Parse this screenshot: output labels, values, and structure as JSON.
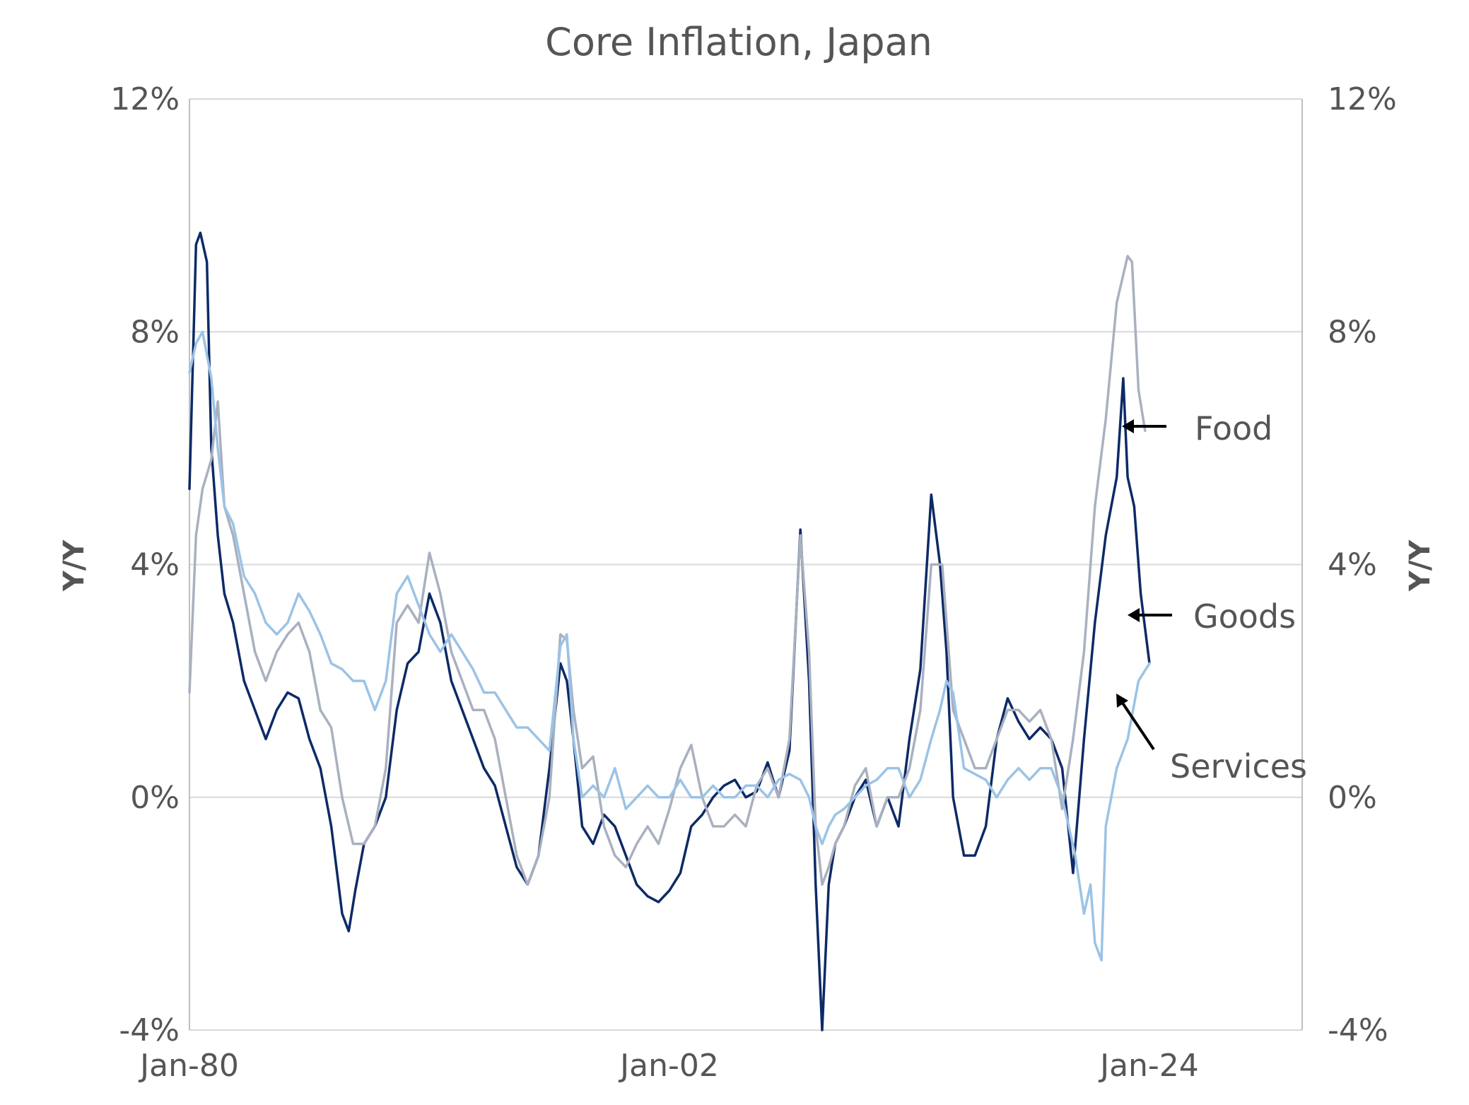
{
  "chart_data": {
    "type": "line",
    "title": "Core Inflation, Japan",
    "ylabel_left": "Y/Y",
    "ylabel_right": "Y/Y",
    "xlim": [
      1980,
      2031
    ],
    "ylim": [
      -4,
      12
    ],
    "yticks": [
      -4,
      0,
      4,
      8,
      12
    ],
    "ytick_labels": [
      "-4%",
      "0%",
      "4%",
      "8%",
      "12%"
    ],
    "xticks": [
      1980,
      2002,
      2024
    ],
    "xtick_labels": [
      "Jan-80",
      "Jan-02",
      "Jan-24"
    ],
    "grid": true,
    "series": [
      {
        "name": "Goods",
        "color": "#0d2a66",
        "x": [
          1980,
          1980.3,
          1980.5,
          1980.8,
          1981,
          1981.3,
          1981.6,
          1982,
          1982.5,
          1983,
          1983.5,
          1984,
          1984.5,
          1985,
          1985.5,
          1986,
          1986.5,
          1987,
          1987.3,
          1987.6,
          1988,
          1988.5,
          1989,
          1989.5,
          1990,
          1990.5,
          1991,
          1991.5,
          1992,
          1992.5,
          1993,
          1993.5,
          1994,
          1994.5,
          1995,
          1995.5,
          1996,
          1996.5,
          1997,
          1997.3,
          1997.6,
          1998,
          1998.5,
          1999,
          1999.5,
          2000,
          2000.5,
          2001,
          2001.5,
          2002,
          2002.5,
          2003,
          2003.5,
          2004,
          2004.5,
          2005,
          2005.5,
          2006,
          2006.5,
          2007,
          2007.5,
          2008,
          2008.4,
          2008.7,
          2009,
          2009.3,
          2009.6,
          2010,
          2010.5,
          2011,
          2011.5,
          2012,
          2012.5,
          2013,
          2013.5,
          2014,
          2014.4,
          2014.7,
          2015,
          2015.5,
          2016,
          2016.5,
          2017,
          2017.5,
          2018,
          2018.5,
          2019,
          2019.5,
          2020,
          2020.5,
          2021,
          2021.5,
          2022,
          2022.5,
          2022.8,
          2023,
          2023.3,
          2023.6,
          2024
        ],
        "y": [
          5.3,
          9.5,
          9.7,
          9.2,
          6.0,
          4.5,
          3.5,
          3.0,
          2.0,
          1.5,
          1.0,
          1.5,
          1.8,
          1.7,
          1.0,
          0.5,
          -0.5,
          -2.0,
          -2.3,
          -1.6,
          -0.8,
          -0.5,
          0.0,
          1.5,
          2.3,
          2.5,
          3.5,
          3.0,
          2.0,
          1.5,
          1.0,
          0.5,
          0.2,
          -0.5,
          -1.2,
          -1.5,
          -1.0,
          0.5,
          2.3,
          2.0,
          1.0,
          -0.5,
          -0.8,
          -0.3,
          -0.5,
          -1.0,
          -1.5,
          -1.7,
          -1.8,
          -1.6,
          -1.3,
          -0.5,
          -0.3,
          0.0,
          0.2,
          0.3,
          0.0,
          0.1,
          0.6,
          0.0,
          0.8,
          4.6,
          2.0,
          -1.5,
          -4.0,
          -1.5,
          -0.8,
          -0.5,
          0.0,
          0.3,
          -0.5,
          0.0,
          -0.5,
          1.0,
          2.2,
          5.2,
          4.0,
          2.5,
          0.0,
          -1.0,
          -1.0,
          -0.5,
          1.0,
          1.7,
          1.3,
          1.0,
          1.2,
          1.0,
          0.5,
          -1.3,
          1.0,
          3.0,
          4.5,
          5.5,
          7.2,
          5.5,
          5.0,
          3.5,
          2.3
        ]
      },
      {
        "name": "Food",
        "color": "#a9b0bf",
        "x": [
          1980,
          1980.3,
          1980.6,
          1981,
          1981.3,
          1981.6,
          1982,
          1982.5,
          1983,
          1983.5,
          1984,
          1984.5,
          1985,
          1985.5,
          1986,
          1986.5,
          1987,
          1987.5,
          1988,
          1988.5,
          1989,
          1989.5,
          1990,
          1990.5,
          1991,
          1991.5,
          1992,
          1992.5,
          1993,
          1993.5,
          1994,
          1994.5,
          1995,
          1995.5,
          1996,
          1996.5,
          1997,
          1997.3,
          1997.6,
          1998,
          1998.5,
          1999,
          1999.5,
          2000,
          2000.5,
          2001,
          2001.5,
          2002,
          2002.5,
          2003,
          2003.5,
          2004,
          2004.5,
          2005,
          2005.5,
          2006,
          2006.5,
          2007,
          2007.5,
          2008,
          2008.4,
          2008.7,
          2009,
          2009.3,
          2009.6,
          2010,
          2010.5,
          2011,
          2011.5,
          2012,
          2012.5,
          2013,
          2013.5,
          2014,
          2014.5,
          2015,
          2015.5,
          2016,
          2016.5,
          2017,
          2017.5,
          2018,
          2018.5,
          2019,
          2019.5,
          2020,
          2020.5,
          2021,
          2021.5,
          2022,
          2022.5,
          2023,
          2023.2,
          2023.5,
          2023.8
        ],
        "y": [
          1.8,
          4.5,
          5.3,
          5.8,
          6.8,
          5.0,
          4.5,
          3.5,
          2.5,
          2.0,
          2.5,
          2.8,
          3.0,
          2.5,
          1.5,
          1.2,
          0.0,
          -0.8,
          -0.8,
          -0.5,
          0.5,
          3.0,
          3.3,
          3.0,
          4.2,
          3.5,
          2.5,
          2.0,
          1.5,
          1.5,
          1.0,
          0.0,
          -1.0,
          -1.5,
          -1.0,
          0.0,
          2.8,
          2.7,
          1.5,
          0.5,
          0.7,
          -0.5,
          -1.0,
          -1.2,
          -0.8,
          -0.5,
          -0.8,
          -0.2,
          0.5,
          0.9,
          0.0,
          -0.5,
          -0.5,
          -0.3,
          -0.5,
          0.2,
          0.5,
          0.0,
          1.0,
          4.5,
          2.5,
          -0.5,
          -1.5,
          -1.2,
          -0.8,
          -0.5,
          0.2,
          0.5,
          -0.5,
          0.0,
          0.0,
          0.5,
          1.5,
          4.0,
          4.0,
          1.5,
          1.0,
          0.5,
          0.5,
          1.0,
          1.5,
          1.5,
          1.3,
          1.5,
          1.0,
          -0.2,
          1.0,
          2.5,
          5.0,
          6.5,
          8.5,
          9.3,
          9.2,
          7.0,
          6.3
        ]
      },
      {
        "name": "Services",
        "color": "#9bc3e6",
        "x": [
          1980,
          1980.3,
          1980.6,
          1981,
          1981.3,
          1981.6,
          1982,
          1982.5,
          1983,
          1983.5,
          1984,
          1984.5,
          1985,
          1985.5,
          1986,
          1986.5,
          1987,
          1987.5,
          1988,
          1988.5,
          1989,
          1989.5,
          1990,
          1990.5,
          1991,
          1991.5,
          1992,
          1992.5,
          1993,
          1993.5,
          1994,
          1994.5,
          1995,
          1995.5,
          1996,
          1996.5,
          1997,
          1997.3,
          1997.6,
          1998,
          1998.5,
          1999,
          1999.5,
          2000,
          2000.5,
          2001,
          2001.5,
          2002,
          2002.5,
          2003,
          2003.5,
          2004,
          2004.5,
          2005,
          2005.5,
          2006,
          2006.5,
          2007,
          2007.5,
          2008,
          2008.4,
          2008.7,
          2009,
          2009.3,
          2009.6,
          2010,
          2010.5,
          2011,
          2011.5,
          2012,
          2012.5,
          2013,
          2013.5,
          2014,
          2014.4,
          2014.7,
          2015,
          2015.5,
          2016,
          2016.5,
          2017,
          2017.5,
          2018,
          2018.5,
          2019,
          2019.5,
          2020,
          2020.3,
          2020.6,
          2021,
          2021.3,
          2021.5,
          2021.8,
          2022,
          2022.5,
          2023,
          2023.5,
          2024
        ],
        "y": [
          7.3,
          7.8,
          8.0,
          7.2,
          6.0,
          5.0,
          4.7,
          3.8,
          3.5,
          3.0,
          2.8,
          3.0,
          3.5,
          3.2,
          2.8,
          2.3,
          2.2,
          2.0,
          2.0,
          1.5,
          2.0,
          3.5,
          3.8,
          3.3,
          2.8,
          2.5,
          2.8,
          2.5,
          2.2,
          1.8,
          1.8,
          1.5,
          1.2,
          1.2,
          1.0,
          0.8,
          2.6,
          2.8,
          1.0,
          0.0,
          0.2,
          0.0,
          0.5,
          -0.2,
          0.0,
          0.2,
          0.0,
          0.0,
          0.3,
          0.0,
          0.0,
          0.2,
          0.0,
          0.0,
          0.2,
          0.2,
          0.0,
          0.3,
          0.4,
          0.3,
          0.0,
          -0.5,
          -0.8,
          -0.5,
          -0.3,
          -0.2,
          0.0,
          0.2,
          0.3,
          0.5,
          0.5,
          0.0,
          0.3,
          1.0,
          1.5,
          2.0,
          1.8,
          0.5,
          0.4,
          0.3,
          0.0,
          0.3,
          0.5,
          0.3,
          0.5,
          0.5,
          0.0,
          -0.5,
          -1.0,
          -2.0,
          -1.5,
          -2.5,
          -2.8,
          -0.5,
          0.5,
          1.0,
          2.0,
          2.3
        ]
      }
    ],
    "annotations": [
      {
        "label": "Food",
        "series": "Food"
      },
      {
        "label": "Goods",
        "series": "Goods"
      },
      {
        "label": "Services",
        "series": "Services"
      }
    ]
  }
}
